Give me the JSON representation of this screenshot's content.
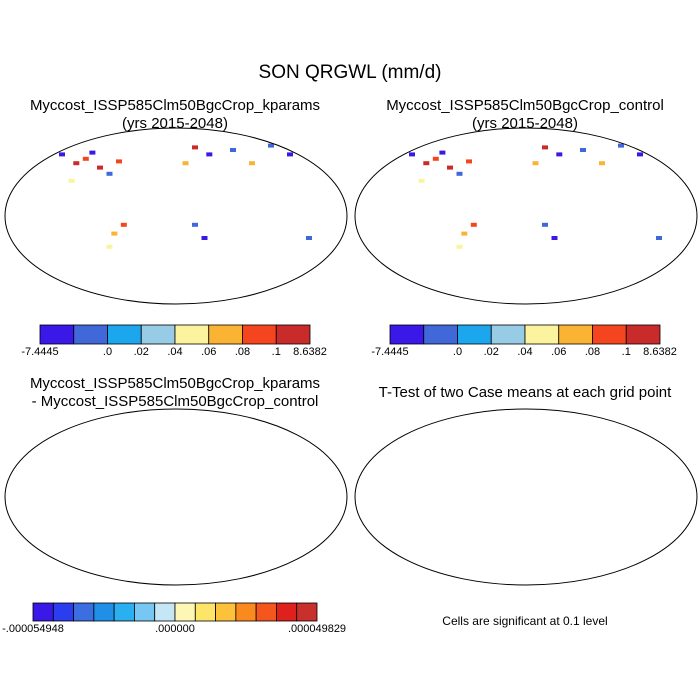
{
  "figure": {
    "title": "SON QRGWL (mm/d)"
  },
  "panels": [
    {
      "id": "kparams",
      "title_line1": "Myccost_ISSP585Clm50BgcCrop_kparams",
      "title_line2": "(yrs 2015-2048)"
    },
    {
      "id": "control",
      "title_line1": "Myccost_ISSP585Clm50BgcCrop_control",
      "title_line2": "(yrs 2015-2048)"
    },
    {
      "id": "difference",
      "title_line1": "Myccost_ISSP585Clm50BgcCrop_kparams",
      "title_line2": "- Myccost_ISSP585Clm50BgcCrop_control"
    },
    {
      "id": "ttest",
      "title_line1": "T-Test of two Case means at each grid point",
      "title_line2": ""
    }
  ],
  "colorbar_case": {
    "colors": [
      "#3a18e8",
      "#4168d8",
      "#1ba6ee",
      "#97cbe6",
      "#fbf39e",
      "#fbb333",
      "#f5451f",
      "#c92b2b"
    ],
    "labels": [
      "-7.4445",
      ".0",
      ".02",
      ".04",
      ".06",
      ".08",
      ".1",
      "8.6382"
    ]
  },
  "colorbar_diff": {
    "colors": [
      "#3a18e8",
      "#2a3ef0",
      "#3b6ee0",
      "#1f8fe8",
      "#2ab0f0",
      "#76c8f2",
      "#c4e6f5",
      "#fdf6b4",
      "#fde56a",
      "#fdc13a",
      "#fb8a1e",
      "#f4561e",
      "#e0201c",
      "#c9302b"
    ],
    "labels": [
      "-.000054948",
      ".000000",
      ".000049829"
    ]
  },
  "ttest_note": "Cells are significant at 0.1 level",
  "colors": {
    "ocean": "#ffffff",
    "land_case": "#1ba6ee",
    "land_diff": "#fdf6b4",
    "coast": "#000000"
  }
}
